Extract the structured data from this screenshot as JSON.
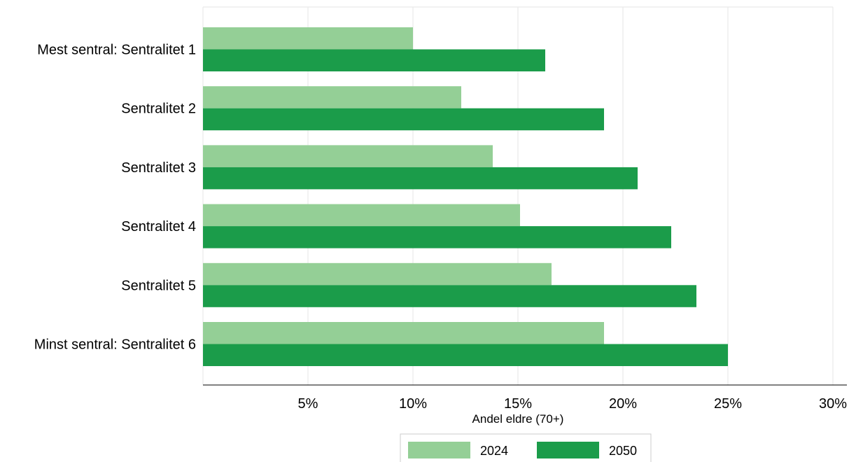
{
  "chart_data": {
    "type": "bar",
    "orientation": "horizontal",
    "title": "",
    "xlabel": "Andel eldre (70+)",
    "ylabel": "",
    "xlim": [
      0,
      30
    ],
    "x_ticks": [
      5,
      10,
      15,
      20,
      25,
      30
    ],
    "x_tick_labels": [
      "5%",
      "10%",
      "15%",
      "20%",
      "25%",
      "30%"
    ],
    "grid": true,
    "legend_position": "bottom",
    "categories": [
      "Mest sentral: Sentralitet 1",
      "Sentralitet 2",
      "Sentralitet 3",
      "Sentralitet 4",
      "Sentralitet 5",
      "Minst sentral: Sentralitet 6"
    ],
    "series": [
      {
        "name": "2024",
        "color": "#94cf96",
        "values": [
          10.0,
          12.3,
          13.8,
          15.1,
          16.6,
          19.1
        ]
      },
      {
        "name": "2050",
        "color": "#1b9c4a",
        "values": [
          16.3,
          19.1,
          20.7,
          22.3,
          23.5,
          25.0
        ]
      }
    ]
  }
}
